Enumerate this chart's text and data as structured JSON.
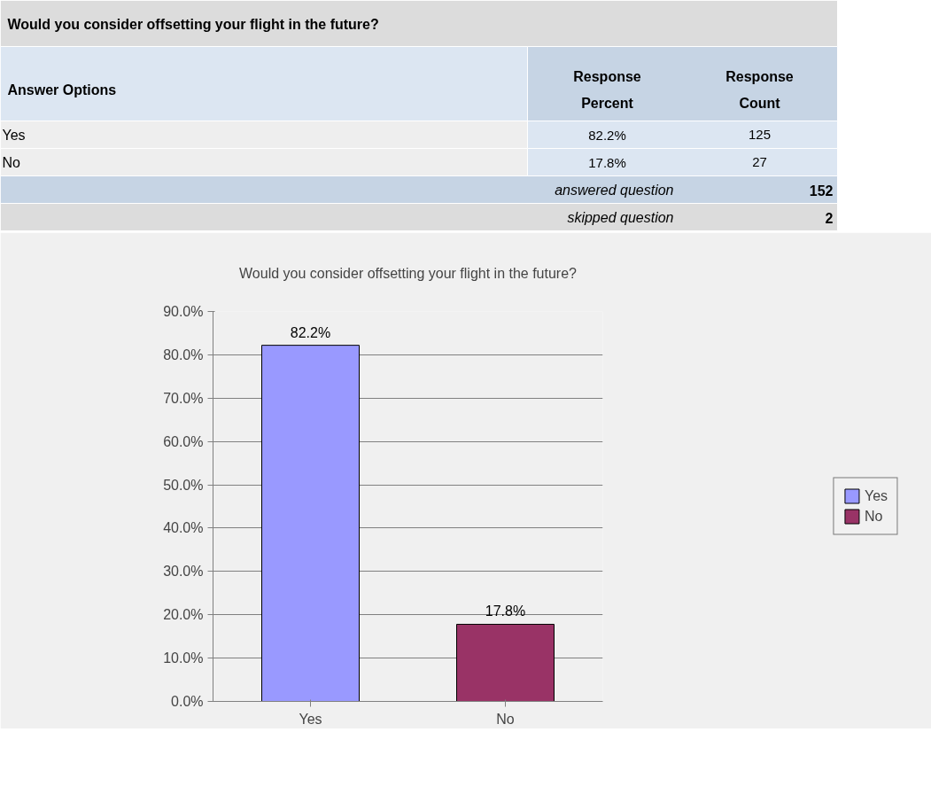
{
  "chart_data": [
    {
      "type": "other",
      "title": "Would you consider offsetting your flight in the future?",
      "annotations": [
        "Answer Options",
        "Response Percent",
        "Response Count",
        "Yes",
        "82.2%",
        "125",
        "No",
        "17.8%",
        "27",
        "answered question",
        "152",
        "skipped question",
        "2"
      ]
    },
    {
      "type": "bar",
      "title": "Would you consider offsetting your flight in the future?",
      "categories": [
        "Yes",
        "No"
      ],
      "series": [
        {
          "name": "Yes",
          "color": "#9999ff",
          "values": [
            82.2,
            null
          ],
          "value_labels": [
            "82.2%",
            null
          ]
        },
        {
          "name": "No",
          "color": "#993366",
          "values": [
            null,
            17.8
          ],
          "value_labels": [
            null,
            "17.8%"
          ]
        }
      ],
      "ylim": [
        0,
        90
      ],
      "yticks": [
        {
          "value": 0,
          "label": "0.0%"
        },
        {
          "value": 10,
          "label": "10.0%"
        },
        {
          "value": 20,
          "label": "20.0%"
        },
        {
          "value": 30,
          "label": "30.0%"
        },
        {
          "value": 40,
          "label": "40.0%"
        },
        {
          "value": 50,
          "label": "50.0%"
        },
        {
          "value": 60,
          "label": "60.0%"
        },
        {
          "value": 70,
          "label": "70.0%"
        },
        {
          "value": 80,
          "label": "80.0%"
        },
        {
          "value": 90,
          "label": "90.0%"
        }
      ],
      "grid": "y",
      "legend": "right"
    }
  ]
}
